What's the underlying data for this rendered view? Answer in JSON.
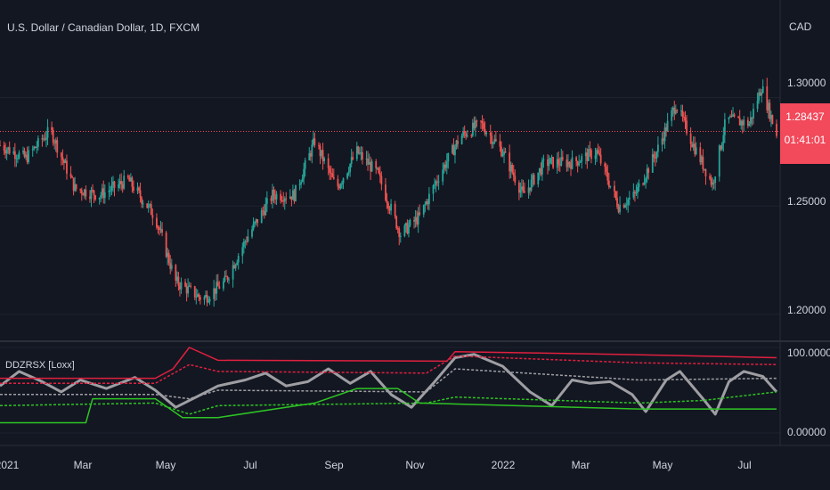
{
  "header": {
    "title": "U.S. Dollar / Canadian Dollar, 1D, FXCM",
    "currency": "CAD"
  },
  "indicator": {
    "name": "DDZRSX [Loxx]"
  },
  "price_axis": {
    "ticks": [
      "1.30000",
      "1.25000",
      "1.20000"
    ]
  },
  "osc_axis": {
    "ticks": [
      "100.00000",
      "0.00000"
    ]
  },
  "time_axis": {
    "ticks": [
      "2021",
      "Mar",
      "May",
      "Jul",
      "Sep",
      "Nov",
      "2022",
      "Mar",
      "May",
      "Jul"
    ]
  },
  "last_price": {
    "value": "1.28437",
    "countdown": "01:41:01"
  },
  "colors": {
    "background": "#131722",
    "up": "#26a69a",
    "down": "#ef5350",
    "upper_band": "#e0203f",
    "lower_band": "#2ec424",
    "signal": "#9e9ea3",
    "tag": "#f2495b"
  },
  "chart_data": [
    {
      "type": "candlestick",
      "title": "U.S. Dollar / Canadian Dollar, 1D, FXCM",
      "x_range": [
        "2021-01-01",
        "2022-07-25"
      ],
      "ylim": [
        1.188,
        1.345
      ],
      "y_ticks": [
        1.2,
        1.25,
        1.3
      ],
      "last_price": 1.28437,
      "anchors": [
        {
          "x": "2021-01-01",
          "y": 1.278
        },
        {
          "x": "2021-01-20",
          "y": 1.272
        },
        {
          "x": "2021-02-07",
          "y": 1.285
        },
        {
          "x": "2021-02-25",
          "y": 1.258
        },
        {
          "x": "2021-03-15",
          "y": 1.255
        },
        {
          "x": "2021-04-05",
          "y": 1.262
        },
        {
          "x": "2021-04-25",
          "y": 1.245
        },
        {
          "x": "2021-05-10",
          "y": 1.215
        },
        {
          "x": "2021-05-30",
          "y": 1.207
        },
        {
          "x": "2021-06-15",
          "y": 1.215
        },
        {
          "x": "2021-07-01",
          "y": 1.235
        },
        {
          "x": "2021-07-20",
          "y": 1.255
        },
        {
          "x": "2021-08-05",
          "y": 1.255
        },
        {
          "x": "2021-08-20",
          "y": 1.28
        },
        {
          "x": "2021-09-05",
          "y": 1.258
        },
        {
          "x": "2021-09-20",
          "y": 1.275
        },
        {
          "x": "2021-10-05",
          "y": 1.265
        },
        {
          "x": "2021-10-22",
          "y": 1.237
        },
        {
          "x": "2021-11-05",
          "y": 1.245
        },
        {
          "x": "2021-11-20",
          "y": 1.265
        },
        {
          "x": "2021-12-05",
          "y": 1.282
        },
        {
          "x": "2021-12-20",
          "y": 1.288
        },
        {
          "x": "2022-01-05",
          "y": 1.275
        },
        {
          "x": "2022-01-20",
          "y": 1.255
        },
        {
          "x": "2022-02-05",
          "y": 1.27
        },
        {
          "x": "2022-02-25",
          "y": 1.27
        },
        {
          "x": "2022-03-15",
          "y": 1.275
        },
        {
          "x": "2022-03-31",
          "y": 1.25
        },
        {
          "x": "2022-04-12",
          "y": 1.255
        },
        {
          "x": "2022-04-28",
          "y": 1.275
        },
        {
          "x": "2022-05-12",
          "y": 1.297
        },
        {
          "x": "2022-05-25",
          "y": 1.278
        },
        {
          "x": "2022-06-08",
          "y": 1.26
        },
        {
          "x": "2022-06-18",
          "y": 1.29
        },
        {
          "x": "2022-07-05",
          "y": 1.288
        },
        {
          "x": "2022-07-14",
          "y": 1.305
        },
        {
          "x": "2022-07-25",
          "y": 1.283
        }
      ]
    },
    {
      "type": "line",
      "title": "DDZRSX [Loxx]",
      "ylim": [
        0,
        100
      ],
      "y_ticks": [
        0,
        100
      ],
      "series": [
        {
          "role": "oscillator",
          "color": "#9e9ea3",
          "points": [
            {
              "x": "2021-01-01",
              "y": 55
            },
            {
              "x": "2021-01-15",
              "y": 72
            },
            {
              "x": "2021-02-01",
              "y": 60
            },
            {
              "x": "2021-02-15",
              "y": 48
            },
            {
              "x": "2021-03-01",
              "y": 62
            },
            {
              "x": "2021-03-20",
              "y": 52
            },
            {
              "x": "2021-04-10",
              "y": 65
            },
            {
              "x": "2021-04-25",
              "y": 50
            },
            {
              "x": "2021-05-10",
              "y": 30
            },
            {
              "x": "2021-05-25",
              "y": 42
            },
            {
              "x": "2021-06-10",
              "y": 55
            },
            {
              "x": "2021-06-30",
              "y": 62
            },
            {
              "x": "2021-07-15",
              "y": 70
            },
            {
              "x": "2021-07-30",
              "y": 55
            },
            {
              "x": "2021-08-15",
              "y": 60
            },
            {
              "x": "2021-08-30",
              "y": 75
            },
            {
              "x": "2021-09-15",
              "y": 58
            },
            {
              "x": "2021-09-30",
              "y": 72
            },
            {
              "x": "2021-10-15",
              "y": 45
            },
            {
              "x": "2021-10-30",
              "y": 30
            },
            {
              "x": "2021-11-15",
              "y": 58
            },
            {
              "x": "2021-12-01",
              "y": 88
            },
            {
              "x": "2021-12-15",
              "y": 92
            },
            {
              "x": "2022-01-05",
              "y": 78
            },
            {
              "x": "2022-01-25",
              "y": 48
            },
            {
              "x": "2022-02-10",
              "y": 32
            },
            {
              "x": "2022-02-25",
              "y": 62
            },
            {
              "x": "2022-03-10",
              "y": 58
            },
            {
              "x": "2022-03-25",
              "y": 60
            },
            {
              "x": "2022-04-10",
              "y": 45
            },
            {
              "x": "2022-04-20",
              "y": 25
            },
            {
              "x": "2022-05-05",
              "y": 62
            },
            {
              "x": "2022-05-15",
              "y": 72
            },
            {
              "x": "2022-06-01",
              "y": 40
            },
            {
              "x": "2022-06-10",
              "y": 22
            },
            {
              "x": "2022-06-20",
              "y": 60
            },
            {
              "x": "2022-07-01",
              "y": 72
            },
            {
              "x": "2022-07-15",
              "y": 66
            },
            {
              "x": "2022-07-25",
              "y": 48
            }
          ]
        },
        {
          "role": "upper band",
          "color": "#e0203f",
          "style": "solid",
          "points": [
            {
              "x": "2021-01-01",
              "y": 64
            },
            {
              "x": "2021-04-25",
              "y": 64
            },
            {
              "x": "2021-05-08",
              "y": 75
            },
            {
              "x": "2021-05-20",
              "y": 100
            },
            {
              "x": "2021-06-10",
              "y": 85
            },
            {
              "x": "2021-11-25",
              "y": 84
            },
            {
              "x": "2021-12-01",
              "y": 95
            },
            {
              "x": "2022-03-30",
              "y": 92
            },
            {
              "x": "2022-07-25",
              "y": 88
            }
          ]
        },
        {
          "role": "upper band",
          "color": "#e0203f",
          "style": "dashed",
          "points": [
            {
              "x": "2021-01-01",
              "y": 58
            },
            {
              "x": "2021-04-25",
              "y": 58
            },
            {
              "x": "2021-05-20",
              "y": 80
            },
            {
              "x": "2021-06-10",
              "y": 72
            },
            {
              "x": "2021-11-10",
              "y": 70
            },
            {
              "x": "2021-12-01",
              "y": 90
            },
            {
              "x": "2022-04-15",
              "y": 82
            },
            {
              "x": "2022-07-25",
              "y": 80
            }
          ]
        },
        {
          "role": "midline",
          "color": "#9e9ea3",
          "style": "dashed",
          "points": [
            {
              "x": "2021-01-01",
              "y": 45
            },
            {
              "x": "2021-04-25",
              "y": 45
            },
            {
              "x": "2021-05-20",
              "y": 40
            },
            {
              "x": "2021-06-10",
              "y": 50
            },
            {
              "x": "2021-11-10",
              "y": 48
            },
            {
              "x": "2021-12-01",
              "y": 75
            },
            {
              "x": "2022-04-15",
              "y": 62
            },
            {
              "x": "2022-07-25",
              "y": 64
            }
          ]
        },
        {
          "role": "lower band",
          "color": "#2ec424",
          "style": "dashed",
          "points": [
            {
              "x": "2021-01-01",
              "y": 32
            },
            {
              "x": "2021-04-25",
              "y": 35
            },
            {
              "x": "2021-05-20",
              "y": 22
            },
            {
              "x": "2021-06-10",
              "y": 32
            },
            {
              "x": "2021-11-10",
              "y": 35
            },
            {
              "x": "2021-12-01",
              "y": 42
            },
            {
              "x": "2022-04-15",
              "y": 35
            },
            {
              "x": "2022-06-01",
              "y": 38
            },
            {
              "x": "2022-07-25",
              "y": 48
            }
          ]
        },
        {
          "role": "lower band",
          "color": "#2ec424",
          "style": "solid",
          "points": [
            {
              "x": "2021-01-01",
              "y": 12
            },
            {
              "x": "2021-03-05",
              "y": 12
            },
            {
              "x": "2021-03-10",
              "y": 40
            },
            {
              "x": "2021-04-25",
              "y": 40
            },
            {
              "x": "2021-05-15",
              "y": 18
            },
            {
              "x": "2021-06-10",
              "y": 18
            },
            {
              "x": "2021-08-20",
              "y": 35
            },
            {
              "x": "2021-09-20",
              "y": 52
            },
            {
              "x": "2021-10-20",
              "y": 52
            },
            {
              "x": "2021-11-05",
              "y": 35
            },
            {
              "x": "2022-04-15",
              "y": 28
            },
            {
              "x": "2022-07-25",
              "y": 28
            }
          ]
        }
      ]
    }
  ]
}
